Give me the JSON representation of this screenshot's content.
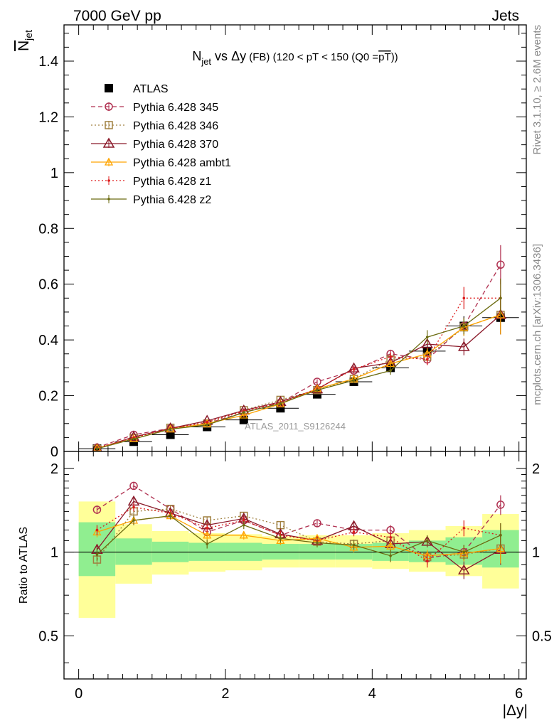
{
  "header": {
    "left": "7000 GeV pp",
    "right": "Jets"
  },
  "side_labels": {
    "rivet": "Rivet 3.1.10, ≥ 2.6M events",
    "mcplots": "mcplots.cern.ch [arXiv:1306.3436]"
  },
  "watermark": "ATLAS_2011_S9126244",
  "colors": {
    "atlas": "#000000",
    "p345": "#b03050",
    "p346": "#a08040",
    "p370": "#8b1a2a",
    "ambt1": "#ffa500",
    "z1": "#dd1a1a",
    "z2": "#6b6b10",
    "band_inner": "#90ee90",
    "band_outer": "#ffff99"
  },
  "chart_data": [
    {
      "type": "scatter",
      "title": "N_jet vs Δy (FB) (120 < pT < 150 (Q0 = pT))",
      "title_parts": {
        "n": "N",
        "n_sub": "jet",
        "vs": " vs ",
        "dy": "Δy",
        "fb": " (FB) ",
        "range": "(120 < pT < 150 (Q0 =",
        "pt": "pT",
        "close": "))"
      },
      "ylabel": "N",
      "ylabel_sub": "jet",
      "xlabel": "|Δy|",
      "xlim": [
        -0.2,
        6.1
      ],
      "ylim": [
        0,
        1.53
      ],
      "x_ticks": [
        "0",
        "2",
        "4",
        "6"
      ],
      "y_ticks": [
        "0",
        "0.2",
        "0.4",
        "0.6",
        "0.8",
        "1",
        "1.2",
        "1.4"
      ],
      "legend_position": "top-left",
      "x": [
        0.25,
        0.75,
        1.25,
        1.75,
        2.25,
        2.75,
        3.25,
        3.75,
        4.25,
        4.75,
        5.25,
        5.75
      ],
      "series": [
        {
          "name": "ATLAS",
          "values": [
            0.01,
            0.035,
            0.06,
            0.088,
            0.113,
            0.155,
            0.205,
            0.25,
            0.3,
            0.36,
            0.45,
            0.48
          ],
          "errors": [
            0.003,
            0.005,
            0.005,
            0.006,
            0.008,
            0.009,
            0.01,
            0.012,
            0.016,
            0.025,
            0.035,
            0.06
          ]
        },
        {
          "name": "Pythia 6.428 345",
          "values": [
            0.014,
            0.06,
            0.083,
            0.1,
            0.14,
            0.175,
            0.25,
            0.29,
            0.35,
            0.33,
            0.45,
            0.67
          ],
          "errors": [
            0.002,
            0.004,
            0.004,
            0.005,
            0.006,
            0.007,
            0.009,
            0.01,
            0.015,
            0.02,
            0.03,
            0.07
          ]
        },
        {
          "name": "Pythia 6.428 346",
          "values": [
            0.009,
            0.048,
            0.085,
            0.1,
            0.148,
            0.185,
            0.22,
            0.26,
            0.33,
            0.34,
            0.445,
            0.49
          ],
          "errors": [
            0.002,
            0.004,
            0.004,
            0.005,
            0.006,
            0.007,
            0.009,
            0.01,
            0.015,
            0.02,
            0.03,
            0.07
          ]
        },
        {
          "name": "Pythia 6.428 370",
          "values": [
            0.01,
            0.052,
            0.083,
            0.11,
            0.147,
            0.178,
            0.223,
            0.298,
            0.318,
            0.385,
            0.375,
            0.49
          ],
          "errors": [
            0.002,
            0.004,
            0.004,
            0.005,
            0.006,
            0.007,
            0.009,
            0.01,
            0.015,
            0.02,
            0.03,
            0.07
          ]
        },
        {
          "name": "Pythia 6.428 ambt1",
          "values": [
            0.012,
            0.045,
            0.08,
            0.1,
            0.13,
            0.17,
            0.225,
            0.26,
            0.315,
            0.35,
            0.445,
            0.49
          ],
          "errors": [
            0.002,
            0.004,
            0.004,
            0.005,
            0.006,
            0.007,
            0.009,
            0.01,
            0.015,
            0.02,
            0.03,
            0.07
          ]
        },
        {
          "name": "Pythia 6.428 z1",
          "values": [
            0.012,
            0.05,
            0.082,
            0.105,
            0.145,
            0.175,
            0.225,
            0.295,
            0.34,
            0.33,
            0.55,
            0.55
          ],
          "errors": [
            0.002,
            0.004,
            0.004,
            0.005,
            0.006,
            0.007,
            0.009,
            0.01,
            0.015,
            0.02,
            0.04,
            0.07
          ]
        },
        {
          "name": "Pythia 6.428 z2",
          "values": [
            0.01,
            0.045,
            0.08,
            0.095,
            0.14,
            0.172,
            0.22,
            0.255,
            0.29,
            0.41,
            0.45,
            0.55
          ],
          "errors": [
            0.002,
            0.004,
            0.004,
            0.005,
            0.006,
            0.007,
            0.009,
            0.01,
            0.015,
            0.025,
            0.03,
            0.07
          ]
        }
      ]
    },
    {
      "type": "scatter",
      "ylabel": "Ratio to ATLAS",
      "xlabel": "|Δy|",
      "xlim": [
        -0.2,
        6.1
      ],
      "ylim": [
        0.35,
        2.3
      ],
      "y_ticks": [
        "0.5",
        "1",
        "2"
      ],
      "x_ticks": [
        "0",
        "2",
        "4",
        "6"
      ],
      "x": [
        0.25,
        0.75,
        1.25,
        1.75,
        2.25,
        2.75,
        3.25,
        3.75,
        4.25,
        4.75,
        5.25,
        5.75
      ],
      "bands": {
        "edges": [
          0,
          0.5,
          1.0,
          1.5,
          2.0,
          2.5,
          3.0,
          3.5,
          4.0,
          4.5,
          5.0,
          5.5,
          6.0
        ],
        "inner_low": [
          0.82,
          0.9,
          0.92,
          0.93,
          0.93,
          0.94,
          0.94,
          0.94,
          0.93,
          0.92,
          0.9,
          0.88
        ],
        "inner_high": [
          1.28,
          1.12,
          1.09,
          1.08,
          1.08,
          1.07,
          1.07,
          1.07,
          1.08,
          1.1,
          1.13,
          1.2
        ],
        "outer_low": [
          0.58,
          0.77,
          0.83,
          0.85,
          0.86,
          0.88,
          0.88,
          0.88,
          0.87,
          0.85,
          0.82,
          0.74
        ],
        "outer_high": [
          1.52,
          1.26,
          1.19,
          1.17,
          1.16,
          1.14,
          1.15,
          1.15,
          1.17,
          1.2,
          1.24,
          1.37
        ]
      },
      "series": [
        {
          "name": "Pythia 6.428 345",
          "values": [
            1.42,
            1.73,
            1.43,
            1.18,
            1.3,
            1.15,
            1.27,
            1.2,
            1.2,
            0.95,
            1.0,
            1.48
          ],
          "errors": [
            0.05,
            0.05,
            0.04,
            0.04,
            0.04,
            0.04,
            0.04,
            0.04,
            0.05,
            0.05,
            0.06,
            0.12
          ]
        },
        {
          "name": "Pythia 6.428 346",
          "values": [
            0.94,
            1.4,
            1.43,
            1.3,
            1.35,
            1.25,
            1.09,
            1.07,
            1.1,
            0.96,
            0.98,
            1.03
          ],
          "errors": [
            0.05,
            0.05,
            0.04,
            0.04,
            0.04,
            0.04,
            0.04,
            0.04,
            0.05,
            0.05,
            0.06,
            0.12
          ]
        },
        {
          "name": "Pythia 6.428 370",
          "values": [
            1.02,
            1.52,
            1.38,
            1.25,
            1.32,
            1.16,
            1.1,
            1.24,
            1.07,
            1.09,
            0.86,
            1.02
          ],
          "errors": [
            0.05,
            0.05,
            0.04,
            0.04,
            0.04,
            0.04,
            0.04,
            0.04,
            0.05,
            0.05,
            0.06,
            0.12
          ]
        },
        {
          "name": "Pythia 6.428 ambt1",
          "values": [
            1.18,
            1.3,
            1.35,
            1.15,
            1.15,
            1.1,
            1.12,
            1.04,
            1.05,
            0.97,
            0.99,
            1.03
          ],
          "errors": [
            0.05,
            0.05,
            0.04,
            0.04,
            0.04,
            0.04,
            0.04,
            0.04,
            0.05,
            0.05,
            0.06,
            0.12
          ]
        },
        {
          "name": "Pythia 6.428 z1",
          "values": [
            1.2,
            1.45,
            1.38,
            1.22,
            1.3,
            1.15,
            1.1,
            1.18,
            1.13,
            0.93,
            1.22,
            1.15
          ],
          "errors": [
            0.05,
            0.05,
            0.04,
            0.04,
            0.04,
            0.04,
            0.04,
            0.04,
            0.05,
            0.05,
            0.08,
            0.12
          ]
        },
        {
          "name": "Pythia 6.428 z2",
          "values": [
            0.98,
            1.3,
            1.35,
            1.07,
            1.25,
            1.12,
            1.08,
            1.06,
            0.97,
            1.1,
            1.0,
            1.15
          ],
          "errors": [
            0.05,
            0.05,
            0.04,
            0.04,
            0.04,
            0.04,
            0.04,
            0.04,
            0.05,
            0.05,
            0.06,
            0.12
          ]
        }
      ]
    }
  ]
}
